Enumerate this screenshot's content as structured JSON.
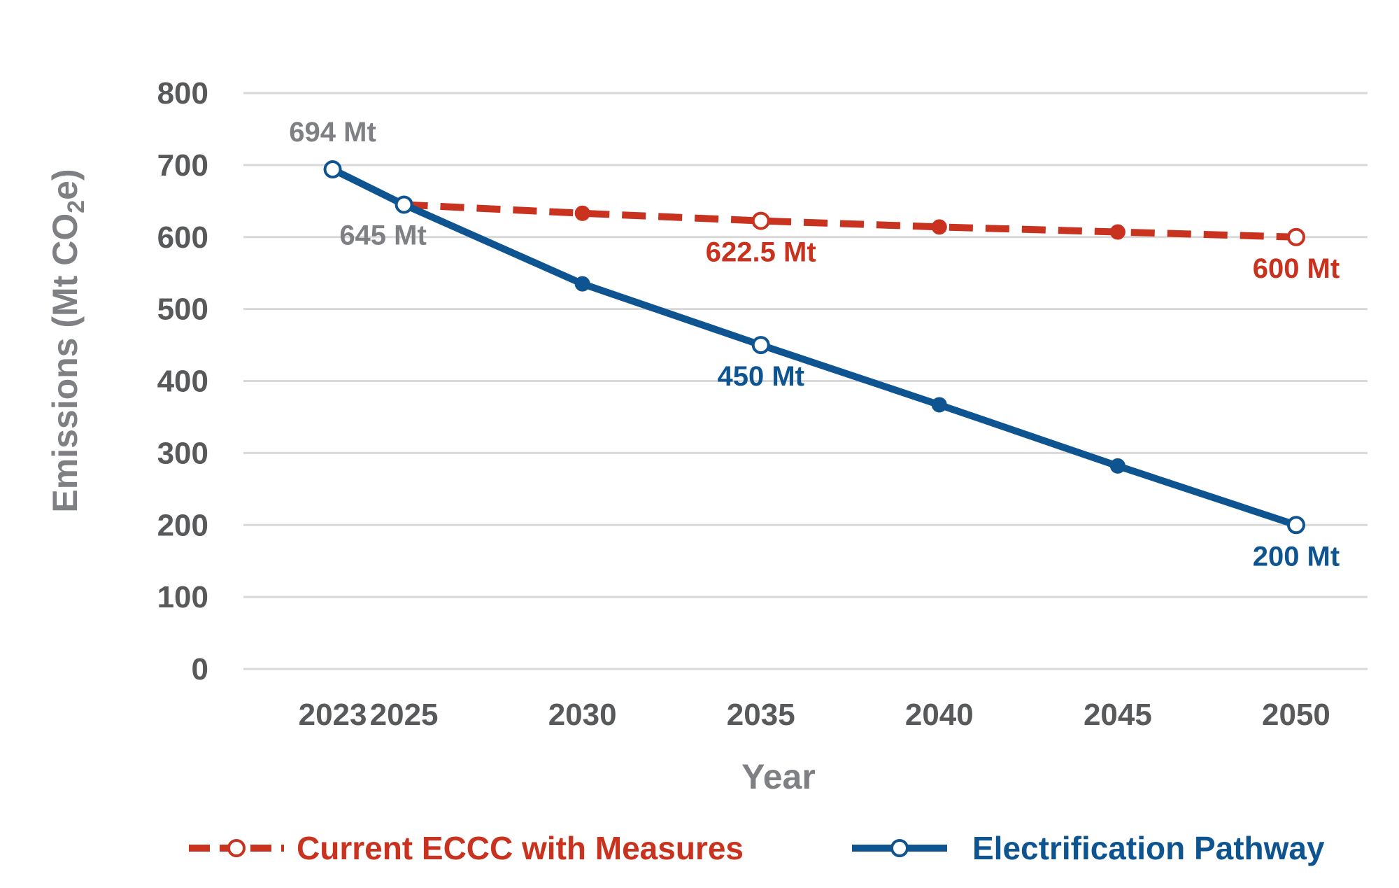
{
  "chart_data": {
    "type": "line",
    "title": "",
    "xlabel": "Year",
    "ylabel_main": "Emissions (Mt CO",
    "ylabel_sub": "2",
    "ylabel_end": "e)",
    "x": [
      "2023",
      "2025",
      "2030",
      "2035",
      "2040",
      "2045",
      "2050"
    ],
    "x_values": [
      2023,
      2025,
      2030,
      2035,
      2040,
      2045,
      2050
    ],
    "xlim": [
      2020.5,
      2052
    ],
    "ylim": [
      0,
      800
    ],
    "yticks": [
      0,
      100,
      200,
      300,
      400,
      500,
      600,
      700,
      800
    ],
    "grid": true,
    "legend_position": "bottom",
    "series": [
      {
        "name": "Current ECCC with Measures",
        "color": "#c8321e",
        "style": "dashed",
        "x": [
          2025,
          2030,
          2035,
          2040,
          2045,
          2050
        ],
        "values": [
          645,
          633,
          622.5,
          614,
          607,
          600
        ],
        "open_markers": [
          2035,
          2050
        ]
      },
      {
        "name": "Electrification Pathway",
        "color": "#0e5490",
        "style": "solid",
        "x": [
          2023,
          2025,
          2030,
          2035,
          2040,
          2045,
          2050
        ],
        "values": [
          694,
          645,
          535,
          450,
          367,
          282,
          200
        ],
        "open_markers": [
          2023,
          2025,
          2035,
          2050
        ]
      }
    ],
    "annotations": [
      {
        "text": "694 Mt",
        "x": 2023,
        "y": 694,
        "color": "#7f8083",
        "pos": "above"
      },
      {
        "text": "645 Mt",
        "x": 2025,
        "y": 645,
        "color": "#7f8083",
        "pos": "below-left"
      },
      {
        "text": "622.5 Mt",
        "x": 2035,
        "y": 622.5,
        "color": "#c8321e",
        "pos": "below"
      },
      {
        "text": "600 Mt",
        "x": 2050,
        "y": 600,
        "color": "#c8321e",
        "pos": "below"
      },
      {
        "text": "450 Mt",
        "x": 2035,
        "y": 450,
        "color": "#0e5490",
        "pos": "below"
      },
      {
        "text": "200 Mt",
        "x": 2050,
        "y": 200,
        "color": "#0e5490",
        "pos": "below"
      }
    ]
  }
}
